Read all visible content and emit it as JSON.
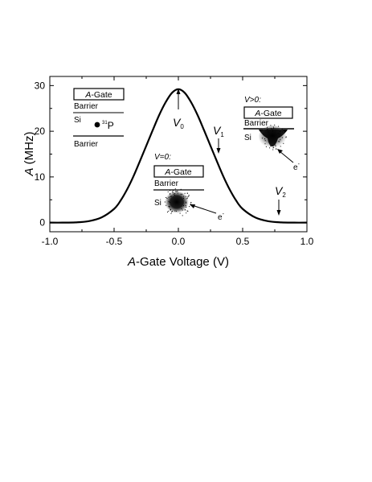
{
  "chart_data": {
    "type": "line",
    "xlabel": {
      "italic": "A",
      "rest": "-Gate Voltage (V)"
    },
    "ylabel": {
      "italic": "A",
      "rest": " (MHz)"
    },
    "xlim": [
      -1.0,
      1.0
    ],
    "ylim": [
      -2,
      32
    ],
    "xticks": [
      -1.0,
      -0.5,
      0.0,
      0.5,
      1.0
    ],
    "xtick_labels": [
      "-1.0",
      "-0.5",
      "0.0",
      "0.5",
      "1.0"
    ],
    "yticks": [
      0,
      10,
      20,
      30
    ],
    "ytick_labels": [
      "0",
      "10",
      "20",
      "30"
    ],
    "grid": false,
    "series": [
      {
        "x": [
          -1.0,
          -0.9,
          -0.8,
          -0.7,
          -0.6,
          -0.5,
          -0.45,
          -0.4,
          -0.35,
          -0.3,
          -0.25,
          -0.2,
          -0.15,
          -0.1,
          -0.05,
          0.0,
          0.05,
          0.1,
          0.15,
          0.2,
          0.25,
          0.3,
          0.35,
          0.4,
          0.45,
          0.5,
          0.6,
          0.7,
          0.8,
          0.9,
          1.0
        ],
        "y": [
          0.0,
          0.0,
          0.05,
          0.3,
          1.1,
          3.0,
          4.8,
          7.2,
          10.1,
          13.4,
          16.8,
          20.2,
          23.5,
          26.3,
          28.4,
          29.2,
          28.4,
          26.3,
          23.5,
          20.2,
          16.8,
          13.4,
          10.1,
          7.2,
          4.8,
          3.0,
          1.1,
          0.3,
          0.05,
          0.0,
          0.0
        ]
      }
    ],
    "annotations": [
      {
        "id": "v0",
        "main": "V",
        "sub": "0",
        "x": 0.0,
        "y": 29.2
      },
      {
        "id": "v1",
        "main": "V",
        "sub": "1",
        "x": 0.3,
        "y": 13.4
      },
      {
        "id": "v2",
        "main": "V",
        "sub": "2",
        "x": 0.79,
        "y": 0.0
      }
    ]
  },
  "insets": {
    "left": {
      "gate": {
        "italic": "A",
        "rest": "-Gate"
      },
      "barrier_top": "Barrier",
      "si": "Si",
      "dot_sup": "31",
      "dot_label": "P",
      "barrier_bottom": "Barrier"
    },
    "middle": {
      "title": "V=0:",
      "gate": {
        "italic": "A",
        "rest": "-Gate"
      },
      "barrier": "Barrier",
      "si": "Si",
      "electron": "e",
      "electron_sup": "-"
    },
    "right": {
      "title": "V>0:",
      "gate": {
        "italic": "A",
        "rest": "-Gate"
      },
      "barrier": "Barrier",
      "si": "Si",
      "electron": "e",
      "electron_sup": "-"
    }
  }
}
